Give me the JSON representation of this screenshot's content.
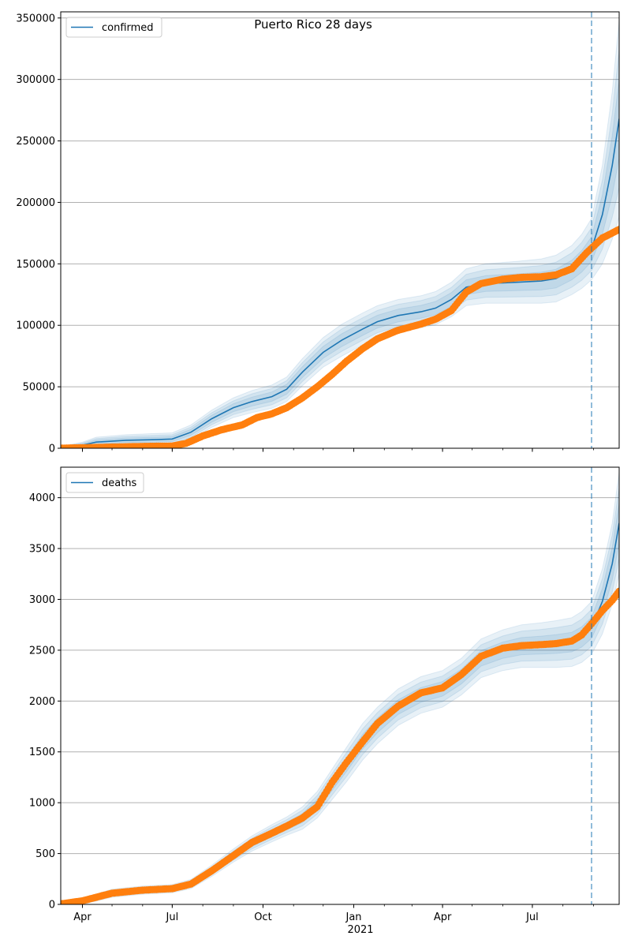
{
  "title": "Puerto Rico 28 days",
  "colors": {
    "model": "#1f77b4",
    "observed": "#ff7f0e",
    "grid": "#b0b0b0"
  },
  "x_axis": {
    "date_min": "2020-03-10",
    "date_max": "2021-09-27",
    "ticks": [
      {
        "date": "2020-04-01",
        "label": "Apr"
      },
      {
        "date": "2020-07-01",
        "label": "Jul"
      },
      {
        "date": "2020-10-01",
        "label": "Oct"
      },
      {
        "date": "2021-01-01",
        "label": "Jan"
      },
      {
        "date": "2021-04-01",
        "label": "Apr"
      },
      {
        "date": "2021-07-01",
        "label": "Jul"
      }
    ],
    "year_label": "2021",
    "forecast_start": "2021-08-30"
  },
  "chart_data": [
    {
      "type": "line",
      "legend": "confirmed",
      "legend_position": "top-left",
      "ylim": [
        0,
        355000
      ],
      "yticks": [
        0,
        50000,
        100000,
        150000,
        200000,
        250000,
        300000,
        350000
      ],
      "ytick_labels": [
        "0",
        "50000",
        "100000",
        "150000",
        "200000",
        "250000",
        "300000",
        "350000"
      ],
      "grid": "horizontal",
      "model": {
        "x": [
          "2020-03-10",
          "2020-04-01",
          "2020-04-15",
          "2020-05-15",
          "2020-06-15",
          "2020-07-01",
          "2020-07-20",
          "2020-08-10",
          "2020-09-01",
          "2020-09-20",
          "2020-10-10",
          "2020-10-25",
          "2020-11-10",
          "2020-12-01",
          "2020-12-20",
          "2021-01-10",
          "2021-01-25",
          "2021-02-15",
          "2021-03-10",
          "2021-03-25",
          "2021-04-10",
          "2021-04-25",
          "2021-05-15",
          "2021-06-15",
          "2021-07-10",
          "2021-07-25",
          "2021-08-10",
          "2021-08-20",
          "2021-08-30",
          "2021-09-10",
          "2021-09-20",
          "2021-09-27"
        ],
        "y": [
          500,
          2500,
          5000,
          6500,
          7000,
          7500,
          13000,
          24000,
          33000,
          38000,
          42000,
          48000,
          62000,
          78000,
          88000,
          97000,
          103000,
          108000,
          111000,
          114000,
          121000,
          131000,
          134000,
          135000,
          136000,
          138000,
          145000,
          152000,
          162000,
          190000,
          230000,
          268000
        ],
        "band": [
          1000,
          2500,
          4000,
          4500,
          5000,
          5000,
          6000,
          7000,
          8000,
          9000,
          9500,
          10000,
          11000,
          12000,
          13000,
          13000,
          13000,
          13000,
          13000,
          13500,
          14000,
          15000,
          16000,
          17000,
          18000,
          19000,
          20000,
          22000,
          25000,
          40000,
          60000,
          80000
        ]
      },
      "observed": {
        "x": [
          "2020-03-10",
          "2020-04-01",
          "2020-05-01",
          "2020-06-01",
          "2020-07-01",
          "2020-07-15",
          "2020-08-01",
          "2020-08-20",
          "2020-09-10",
          "2020-09-25",
          "2020-10-10",
          "2020-10-25",
          "2020-11-10",
          "2020-11-25",
          "2020-12-10",
          "2020-12-25",
          "2021-01-10",
          "2021-01-25",
          "2021-02-15",
          "2021-03-10",
          "2021-03-25",
          "2021-04-10",
          "2021-04-25",
          "2021-05-10",
          "2021-06-01",
          "2021-06-20",
          "2021-07-10",
          "2021-07-25",
          "2021-08-10",
          "2021-08-25",
          "2021-09-10",
          "2021-09-27"
        ],
        "y": [
          100,
          400,
          1000,
          1500,
          1800,
          4000,
          10000,
          15000,
          19000,
          25000,
          28000,
          33000,
          41000,
          50000,
          60000,
          71000,
          81000,
          89000,
          96000,
          101000,
          105000,
          112000,
          127000,
          134000,
          137500,
          139000,
          139500,
          141000,
          146000,
          159000,
          171000,
          178000
        ]
      }
    },
    {
      "type": "line",
      "legend": "deaths",
      "legend_position": "top-left",
      "ylim": [
        0,
        4300
      ],
      "yticks": [
        0,
        500,
        1000,
        1500,
        2000,
        2500,
        3000,
        3500,
        4000
      ],
      "ytick_labels": [
        "0",
        "500",
        "1000",
        "1500",
        "2000",
        "2500",
        "3000",
        "3500",
        "4000"
      ],
      "grid": "horizontal",
      "model": {
        "x": [
          "2020-03-10",
          "2020-04-01",
          "2020-05-01",
          "2020-06-01",
          "2020-07-01",
          "2020-07-20",
          "2020-08-10",
          "2020-09-01",
          "2020-09-20",
          "2020-10-10",
          "2020-10-25",
          "2020-11-10",
          "2020-11-25",
          "2020-12-10",
          "2020-12-25",
          "2021-01-10",
          "2021-01-25",
          "2021-02-15",
          "2021-03-10",
          "2021-04-01",
          "2021-04-20",
          "2021-05-10",
          "2021-06-01",
          "2021-06-20",
          "2021-07-10",
          "2021-07-25",
          "2021-08-10",
          "2021-08-20",
          "2021-08-30",
          "2021-09-10",
          "2021-09-20",
          "2021-09-27"
        ],
        "y": [
          5,
          30,
          110,
          140,
          155,
          200,
          330,
          480,
          600,
          700,
          770,
          850,
          980,
          1180,
          1380,
          1600,
          1760,
          1940,
          2060,
          2120,
          2240,
          2420,
          2500,
          2540,
          2550,
          2560,
          2580,
          2630,
          2720,
          2980,
          3350,
          3750
        ],
        "band": [
          20,
          30,
          40,
          40,
          40,
          45,
          55,
          65,
          75,
          85,
          90,
          110,
          130,
          150,
          170,
          180,
          180,
          180,
          180,
          180,
          180,
          190,
          200,
          210,
          220,
          230,
          240,
          250,
          260,
          320,
          400,
          500
        ]
      },
      "observed": {
        "x": [
          "2020-03-10",
          "2020-04-01",
          "2020-05-01",
          "2020-06-01",
          "2020-07-01",
          "2020-07-20",
          "2020-08-10",
          "2020-09-01",
          "2020-09-20",
          "2020-10-10",
          "2020-10-25",
          "2020-11-10",
          "2020-11-25",
          "2020-12-10",
          "2020-12-25",
          "2021-01-10",
          "2021-01-25",
          "2021-02-15",
          "2021-03-10",
          "2021-04-01",
          "2021-04-20",
          "2021-05-10",
          "2021-06-01",
          "2021-06-20",
          "2021-07-10",
          "2021-07-25",
          "2021-08-10",
          "2021-08-20",
          "2021-08-30",
          "2021-09-10",
          "2021-09-20",
          "2021-09-27"
        ],
        "y": [
          5,
          35,
          110,
          140,
          155,
          200,
          330,
          480,
          610,
          700,
          770,
          850,
          960,
          1200,
          1400,
          1600,
          1780,
          1950,
          2080,
          2130,
          2260,
          2440,
          2520,
          2545,
          2555,
          2565,
          2590,
          2650,
          2760,
          2890,
          2990,
          3080
        ]
      }
    }
  ]
}
